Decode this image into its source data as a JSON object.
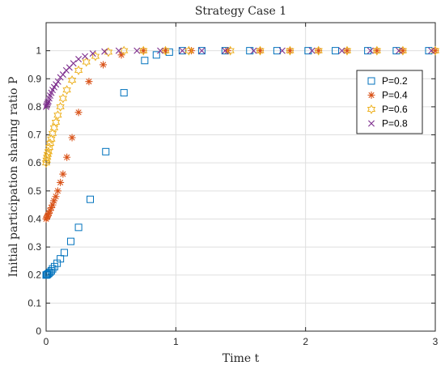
{
  "chart_data": {
    "type": "scatter",
    "title": "Strategy Case 1",
    "xlabel": "Time t",
    "ylabel": "Initial participation sharing ratio P",
    "xlim": [
      0,
      3
    ],
    "ylim": [
      0,
      1.1
    ],
    "xticks": [
      0,
      1,
      2,
      3
    ],
    "xtick_labels": [
      "0",
      "1",
      "2",
      "3"
    ],
    "yticks": [
      0,
      0.1,
      0.2,
      0.3,
      0.4,
      0.5,
      0.6,
      0.7,
      0.8,
      0.9,
      1
    ],
    "ytick_labels": [
      "0",
      "0.1",
      "0.2",
      "0.3",
      "0.4",
      "0.5",
      "0.6",
      "0.7",
      "0.8",
      "0.9",
      "1"
    ],
    "grid": true,
    "legend_position": "right",
    "series": [
      {
        "name": "P=0.2",
        "marker": "square",
        "color": "#0072BD",
        "x": [
          0,
          0.006,
          0.012,
          0.02,
          0.03,
          0.04,
          0.05,
          0.065,
          0.085,
          0.11,
          0.14,
          0.19,
          0.25,
          0.34,
          0.46,
          0.6,
          0.76,
          0.85,
          0.95,
          1.05,
          1.2,
          1.38,
          1.57,
          1.78,
          2.02,
          2.23,
          2.48,
          2.7,
          2.95
        ],
        "y": [
          0.2,
          0.201,
          0.203,
          0.206,
          0.21,
          0.215,
          0.222,
          0.23,
          0.242,
          0.258,
          0.28,
          0.32,
          0.37,
          0.47,
          0.64,
          0.85,
          0.965,
          0.985,
          0.995,
          1,
          1,
          1,
          1,
          1,
          1,
          1,
          1,
          1,
          1
        ]
      },
      {
        "name": "P=0.4",
        "marker": "asterisk",
        "color": "#D95319",
        "x": [
          0,
          0.005,
          0.01,
          0.016,
          0.022,
          0.03,
          0.04,
          0.05,
          0.06,
          0.075,
          0.09,
          0.11,
          0.13,
          0.16,
          0.2,
          0.25,
          0.33,
          0.44,
          0.58,
          0.75,
          0.92,
          1.12,
          1.4,
          1.65,
          1.88,
          2.1,
          2.32,
          2.55,
          2.75,
          3.0
        ],
        "y": [
          0.4,
          0.405,
          0.41,
          0.415,
          0.42,
          0.43,
          0.44,
          0.45,
          0.465,
          0.48,
          0.5,
          0.53,
          0.56,
          0.62,
          0.69,
          0.78,
          0.89,
          0.95,
          0.985,
          1,
          1,
          1,
          1,
          1,
          1,
          1,
          1,
          1,
          1,
          1
        ]
      },
      {
        "name": "P=0.6",
        "marker": "hexagram",
        "color": "#EDB120",
        "x": [
          0,
          0.004,
          0.008,
          0.012,
          0.018,
          0.025,
          0.032,
          0.04,
          0.05,
          0.062,
          0.075,
          0.09,
          0.11,
          0.13,
          0.16,
          0.2,
          0.25,
          0.31,
          0.38,
          0.48,
          0.6,
          0.75,
          0.92,
          1.1,
          1.42,
          1.65,
          1.88,
          2.1,
          2.32,
          2.55,
          2.75,
          3.0
        ],
        "y": [
          0.6,
          0.61,
          0.62,
          0.63,
          0.64,
          0.655,
          0.67,
          0.685,
          0.705,
          0.725,
          0.745,
          0.77,
          0.8,
          0.83,
          0.86,
          0.895,
          0.93,
          0.96,
          0.98,
          0.995,
          1,
          1,
          1,
          1,
          1,
          1,
          1,
          1,
          1,
          1,
          1,
          1
        ]
      },
      {
        "name": "P=0.8",
        "marker": "cross",
        "color": "#7E2F8E",
        "x": [
          0,
          0.004,
          0.008,
          0.013,
          0.018,
          0.024,
          0.031,
          0.04,
          0.05,
          0.062,
          0.076,
          0.092,
          0.11,
          0.13,
          0.155,
          0.18,
          0.21,
          0.25,
          0.3,
          0.36,
          0.45,
          0.56,
          0.7,
          0.88,
          1.05,
          1.2,
          1.38,
          1.6,
          1.82,
          2.05,
          2.28,
          2.5,
          2.72,
          2.97
        ],
        "y": [
          0.8,
          0.805,
          0.81,
          0.815,
          0.82,
          0.83,
          0.84,
          0.85,
          0.86,
          0.87,
          0.88,
          0.89,
          0.905,
          0.915,
          0.93,
          0.94,
          0.955,
          0.97,
          0.98,
          0.99,
          0.997,
          1,
          1,
          1,
          1,
          1,
          1,
          1,
          1,
          1,
          1,
          1,
          1,
          1
        ]
      }
    ]
  }
}
